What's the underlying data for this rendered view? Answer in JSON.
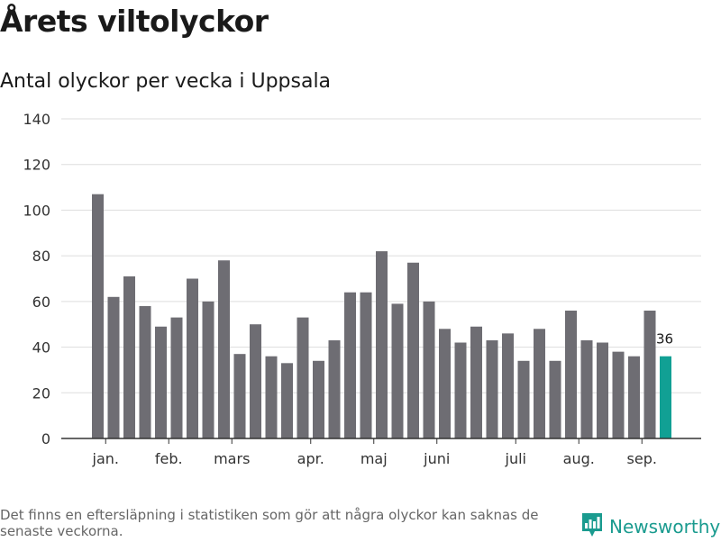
{
  "header": {
    "title": "Årets viltolyckor",
    "subtitle": "Antal olyckor per vecka i Uppsala"
  },
  "chart_data": {
    "type": "bar",
    "title": "Årets viltolyckor",
    "subtitle": "Antal olyckor per vecka i Uppsala",
    "xlabel": "",
    "ylabel": "",
    "ylim": [
      0,
      140
    ],
    "yticks": [
      0,
      20,
      40,
      60,
      80,
      100,
      120,
      140
    ],
    "grid": true,
    "values": [
      107,
      62,
      71,
      58,
      49,
      53,
      70,
      60,
      78,
      37,
      50,
      36,
      33,
      53,
      34,
      43,
      64,
      64,
      82,
      59,
      77,
      60,
      48,
      42,
      49,
      43,
      46,
      34,
      48,
      34,
      56,
      43,
      42,
      38,
      36,
      56,
      36
    ],
    "highlight_index": 36,
    "highlight_label": "36",
    "month_labels": [
      {
        "label": "jan.",
        "bar_index": 0.5
      },
      {
        "label": "feb.",
        "bar_index": 4.5
      },
      {
        "label": "mars",
        "bar_index": 8.5
      },
      {
        "label": "apr.",
        "bar_index": 13.5
      },
      {
        "label": "maj",
        "bar_index": 17.5
      },
      {
        "label": "juni",
        "bar_index": 21.5
      },
      {
        "label": "juli",
        "bar_index": 26.5
      },
      {
        "label": "aug.",
        "bar_index": 30.5
      },
      {
        "label": "sep.",
        "bar_index": 34.5
      }
    ],
    "colors": {
      "bar": "#6e6d73",
      "highlight": "#11a094",
      "grid": "#dddddd",
      "axis": "#333333"
    }
  },
  "footer": {
    "note": "Det finns en eftersläpning i statistiken som gör att några olyckor kan saknas de senaste veckorna.",
    "brand": "Newsworthy",
    "brand_icon": "newsworthy-logo-icon"
  }
}
